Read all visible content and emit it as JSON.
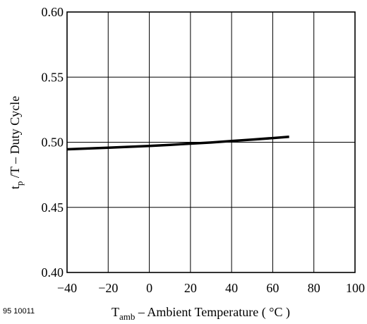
{
  "figure_id": "95 10011",
  "chart_data": {
    "type": "line",
    "x": [
      -40,
      -30,
      -20,
      -10,
      0,
      10,
      20,
      30,
      40,
      50,
      60,
      68
    ],
    "series": [
      {
        "values": [
          0.4946,
          0.4952,
          0.4958,
          0.4965,
          0.4972,
          0.498,
          0.4989,
          0.4998,
          0.5009,
          0.502,
          0.5032,
          0.5042
        ]
      }
    ],
    "xlim": [
      -40,
      100
    ],
    "ylim": [
      0.4,
      0.6
    ],
    "xticks": [
      "−40",
      "−20",
      "0",
      "20",
      "40",
      "60",
      "80",
      "100"
    ],
    "yticks": [
      "0.40",
      "0.45",
      "0.50",
      "0.55",
      "0.60"
    ],
    "xlabel": {
      "main": "T",
      "sub": "amb",
      "rest": " – Ambient Temperature ( °C )"
    },
    "ylabel": {
      "main": "t",
      "sub": "p",
      "rest": " /T – Duty Cycle"
    },
    "grid": true
  }
}
